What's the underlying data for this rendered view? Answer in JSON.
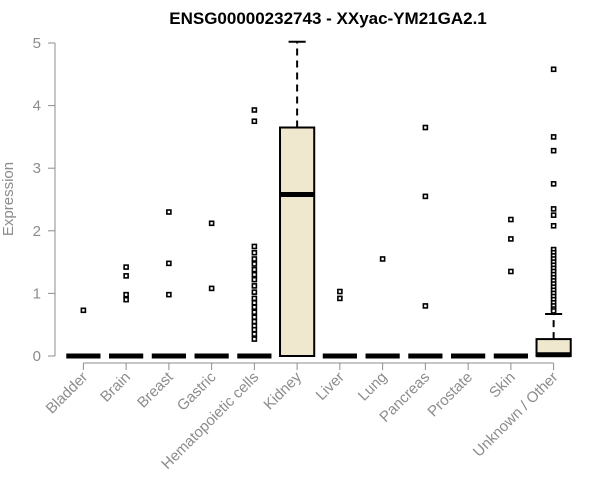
{
  "chart_data": {
    "type": "box",
    "title": "ENSG00000232743 - XXyac-YM21GA2.1",
    "xlabel": "",
    "ylabel": "Expression",
    "ylim": [
      0,
      5
    ],
    "yticks": [
      0,
      1,
      2,
      3,
      4,
      5
    ],
    "grid": false,
    "box_fill": "#efe8cf",
    "axis_color": "#8c8c8c",
    "categories": [
      "Bladder",
      "Brain",
      "Breast",
      "Gastric",
      "Hematopoietic cells",
      "Kidney",
      "Liver",
      "Lung",
      "Pancreas",
      "Prostate",
      "Skin",
      "Unknown / Other"
    ],
    "boxes": [
      {
        "category": "Bladder",
        "q1": 0,
        "median": 0,
        "q3": 0,
        "whisker_low": 0,
        "whisker_high": 0,
        "outliers": [
          0.73
        ]
      },
      {
        "category": "Brain",
        "q1": 0,
        "median": 0,
        "q3": 0,
        "whisker_low": 0,
        "whisker_high": 0,
        "outliers": [
          1.42,
          1.28,
          0.98,
          0.9
        ]
      },
      {
        "category": "Breast",
        "q1": 0,
        "median": 0,
        "q3": 0,
        "whisker_low": 0,
        "whisker_high": 0,
        "outliers": [
          2.3,
          1.48,
          0.98
        ]
      },
      {
        "category": "Gastric",
        "q1": 0,
        "median": 0,
        "q3": 0,
        "whisker_low": 0,
        "whisker_high": 0,
        "outliers": [
          2.12,
          1.08
        ]
      },
      {
        "category": "Hematopoietic cells",
        "q1": 0,
        "median": 0,
        "q3": 0,
        "whisker_low": 0,
        "whisker_high": 0,
        "outliers": [
          3.93,
          3.75,
          1.75,
          1.65,
          1.55,
          1.47,
          1.38,
          1.3,
          1.22,
          1.12,
          1.02,
          0.92,
          0.85,
          0.78,
          0.7,
          0.62,
          0.55,
          0.48,
          0.42,
          0.35,
          0.27
        ]
      },
      {
        "category": "Kidney",
        "q1": 0,
        "median": 2.58,
        "q3": 3.65,
        "whisker_low": 0,
        "whisker_high": 5.02,
        "outliers": []
      },
      {
        "category": "Liver",
        "q1": 0,
        "median": 0,
        "q3": 0,
        "whisker_low": 0,
        "whisker_high": 0,
        "outliers": [
          1.03,
          0.92
        ]
      },
      {
        "category": "Lung",
        "q1": 0,
        "median": 0,
        "q3": 0,
        "whisker_low": 0,
        "whisker_high": 0,
        "outliers": [
          1.55
        ]
      },
      {
        "category": "Pancreas",
        "q1": 0,
        "median": 0,
        "q3": 0,
        "whisker_low": 0,
        "whisker_high": 0,
        "outliers": [
          3.65,
          2.55,
          0.8
        ]
      },
      {
        "category": "Prostate",
        "q1": 0,
        "median": 0,
        "q3": 0,
        "whisker_low": 0,
        "whisker_high": 0,
        "outliers": []
      },
      {
        "category": "Skin",
        "q1": 0,
        "median": 0,
        "q3": 0,
        "whisker_low": 0,
        "whisker_high": 0,
        "outliers": [
          2.18,
          1.87,
          1.35
        ]
      },
      {
        "category": "Unknown / Other",
        "q1": 0,
        "median": 0.02,
        "q3": 0.27,
        "whisker_low": 0,
        "whisker_high": 0.67,
        "outliers": [
          4.58,
          3.5,
          3.28,
          2.75,
          2.35,
          2.25,
          2.08,
          1.7,
          1.65,
          1.6,
          1.55,
          1.5,
          1.45,
          1.4,
          1.35,
          1.3,
          1.25,
          1.2,
          1.15,
          1.1,
          1.05,
          1.0,
          0.95,
          0.9,
          0.85,
          0.8,
          0.75,
          0.72
        ]
      }
    ]
  }
}
